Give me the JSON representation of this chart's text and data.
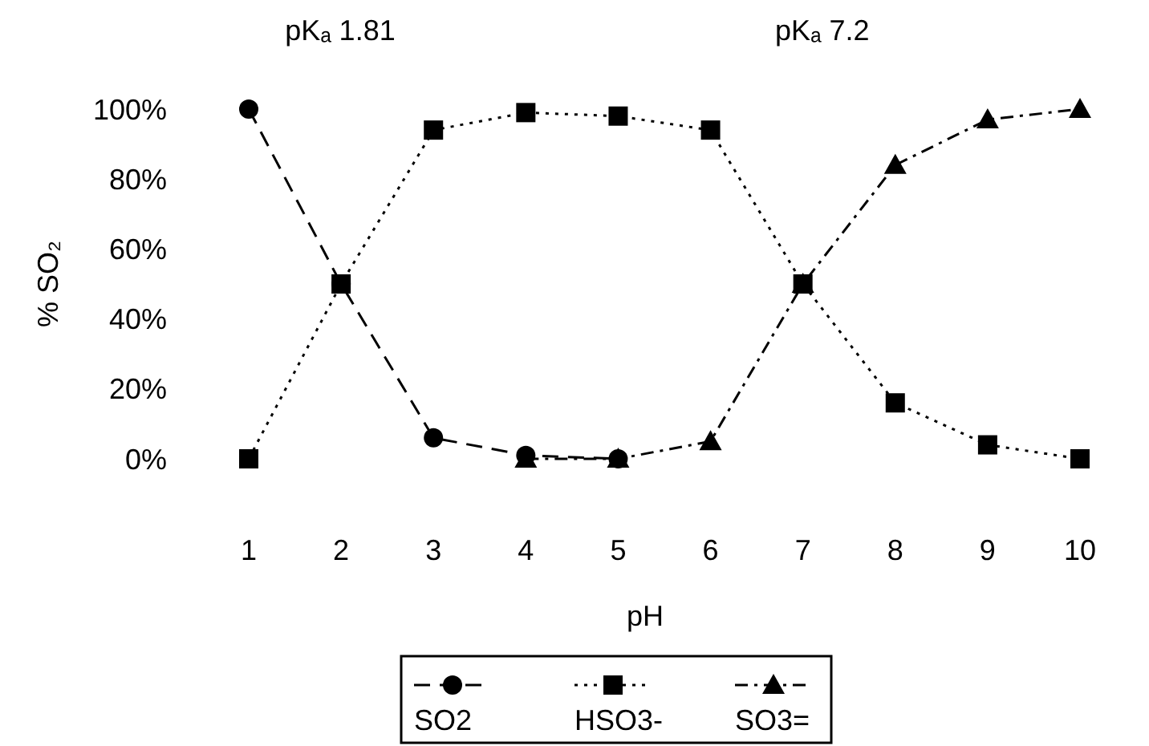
{
  "chart_data": {
    "type": "line",
    "xlabel": "pH",
    "ylabel": "% SO₂",
    "x": [
      1,
      2,
      3,
      4,
      5,
      6,
      7,
      8,
      9,
      10
    ],
    "xlim": [
      1,
      10
    ],
    "xticks": [
      1,
      2,
      3,
      4,
      5,
      6,
      7,
      8,
      9,
      10
    ],
    "ylim": [
      0,
      100
    ],
    "yticks": [
      {
        "value": 0,
        "label": "0%"
      },
      {
        "value": 20,
        "label": "20%"
      },
      {
        "value": 40,
        "label": "40%"
      },
      {
        "value": 60,
        "label": "60%"
      },
      {
        "value": 80,
        "label": "80%"
      },
      {
        "value": 100,
        "label": "100%"
      }
    ],
    "grid": false,
    "legend": "bottom",
    "annotations": [
      "pKₐ 1.81",
      "pKₐ 7.2"
    ],
    "series": [
      {
        "name": "SO2",
        "color": "#000000",
        "marker": "circle",
        "line_style": "dashed",
        "values": [
          100,
          50,
          6,
          1,
          0,
          null,
          null,
          null,
          null,
          null
        ]
      },
      {
        "name": "HSO3-",
        "color": "#000000",
        "marker": "square",
        "line_style": "dotted",
        "values": [
          0,
          50,
          94,
          99,
          98,
          94,
          50,
          16,
          4,
          0
        ]
      },
      {
        "name": "SO3=",
        "color": "#000000",
        "marker": "triangle",
        "line_style": "dashdot",
        "values": [
          null,
          null,
          null,
          0,
          0,
          5,
          50,
          84,
          97,
          100
        ]
      }
    ]
  }
}
